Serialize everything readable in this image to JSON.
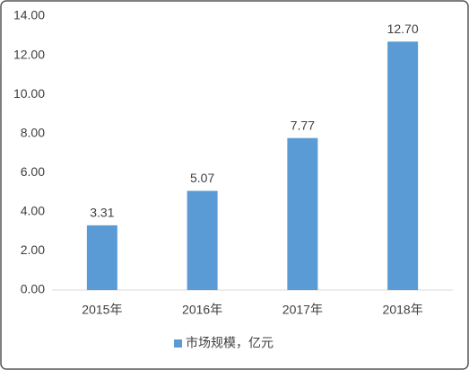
{
  "chart_data": {
    "type": "bar",
    "categories": [
      "2015年",
      "2016年",
      "2017年",
      "2018年"
    ],
    "series": [
      {
        "name": "市场规模，亿元",
        "color": "#5b9bd5",
        "values": [
          3.31,
          5.07,
          7.77,
          12.7
        ],
        "value_labels": [
          "3.31",
          "5.07",
          "7.77",
          "12.70"
        ]
      }
    ],
    "ylim": [
      0,
      14
    ],
    "yticks": [
      {
        "value": 0,
        "label": "0.00"
      },
      {
        "value": 2,
        "label": "2.00"
      },
      {
        "value": 4,
        "label": "4.00"
      },
      {
        "value": 6,
        "label": "6.00"
      },
      {
        "value": 8,
        "label": "8.00"
      },
      {
        "value": 10,
        "label": "10.00"
      },
      {
        "value": 12,
        "label": "12.00"
      },
      {
        "value": 14,
        "label": "14.00"
      }
    ],
    "grid": false,
    "legend": "bottom"
  }
}
